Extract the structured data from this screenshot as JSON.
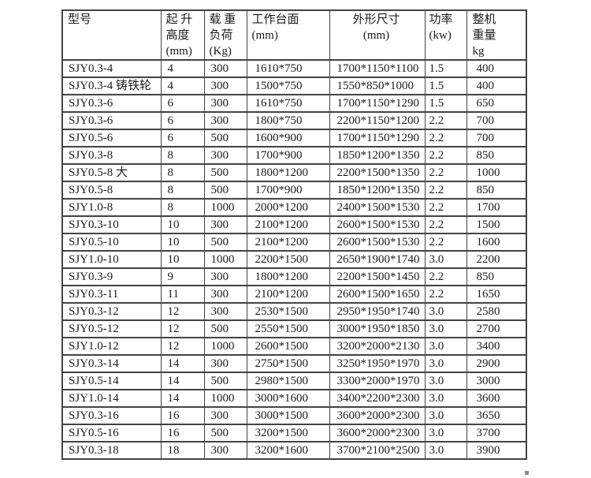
{
  "page": {
    "background_color": "#ffffff",
    "text_color": "#1c1c1c",
    "table_border_color": "#434343",
    "corner_dot_color": "#8a8a8a"
  },
  "table": {
    "header": {
      "cols": [
        {
          "id": "model",
          "lines": [
            "型号",
            "",
            ""
          ]
        },
        {
          "id": "lift-height",
          "lines": [
            "起 升",
            "高度",
            "(mm)"
          ]
        },
        {
          "id": "load",
          "lines": [
            "载 重",
            "负荷",
            "(Kg)"
          ]
        },
        {
          "id": "platform",
          "lines": [
            "工作台面",
            "(mm)",
            ""
          ]
        },
        {
          "id": "dimensions",
          "lines": [
            "外形尺寸",
            "(mm)",
            ""
          ]
        },
        {
          "id": "power",
          "lines": [
            "功率",
            "(kw)",
            ""
          ]
        },
        {
          "id": "weight",
          "lines": [
            "整机",
            "重量",
            "kg"
          ]
        }
      ]
    },
    "rows": [
      [
        "SJY0.3-4",
        "4",
        "300",
        "1610*750",
        "1700*1150*1100",
        "1.5",
        "400"
      ],
      [
        "SJY0.3-4 铸铁轮",
        "4",
        "300",
        "1500*750",
        "1550*850*1000",
        "1.5",
        "400"
      ],
      [
        "SJY0.3-6",
        "6",
        "300",
        "1610*750",
        "1700*1150*1290",
        "1.5",
        "650"
      ],
      [
        "SJY0.3-6",
        "6",
        "300",
        "1800*750",
        "2200*1150*1200",
        "2.2",
        "700"
      ],
      [
        "SJY0.5-6",
        "6",
        "500",
        "1600*900",
        "1700*1150*1290",
        "2.2",
        "700"
      ],
      [
        "SJY0.3-8",
        "8",
        "300",
        "1700*900",
        "1850*1200*1350",
        "2.2",
        "850"
      ],
      [
        "SJY0.5-8 大",
        "8",
        "500",
        "1800*1200",
        "2200*1500*1350",
        "2.2",
        "1000"
      ],
      [
        "SJY0.5-8",
        "8",
        "500",
        "1700*900",
        "1850*1200*1350",
        "2.2",
        "850"
      ],
      [
        "SJY1.0-8",
        "8",
        "1000",
        "2000*1200",
        "2400*1500*1530",
        "2.2",
        "1700"
      ],
      [
        "SJY0.3-10",
        "10",
        "300",
        "2100*1200",
        "2600*1500*1530",
        "2.2",
        "1500"
      ],
      [
        "SJY0.5-10",
        "10",
        "500",
        "2100*1200",
        "2600*1500*1530",
        "2.2",
        "1600"
      ],
      [
        "SJY1.0-10",
        "10",
        "1000",
        "2200*1500",
        "2650*1900*1740",
        "3.0",
        "2200"
      ],
      [
        "SJY0.3-9",
        "9",
        "300",
        "1800*1200",
        "2200*1500*1450",
        "2.2",
        "850"
      ],
      [
        "SJY0.3-11",
        "11",
        "300",
        "2100*1200",
        "2600*1500*1650",
        "2.2",
        "1650"
      ],
      [
        "SJY0.3-12",
        "12",
        "300",
        "2530*1500",
        "2950*1950*1740",
        "3.0",
        "2580"
      ],
      [
        "SJY0.5-12",
        "12",
        "500",
        "2550*1500",
        "3000*1950*1850",
        "3.0",
        "2700"
      ],
      [
        "SJY1.0-12",
        "12",
        "1000",
        "2600*1500",
        "3200*2000*2130",
        "3.0",
        "3400"
      ],
      [
        "SJY0.3-14",
        "14",
        "300",
        "2750*1500",
        "3250*1950*1970",
        "3.0",
        "2900"
      ],
      [
        "SJY0.5-14",
        "14",
        "500",
        "2980*1500",
        "3300*2000*1970",
        "3.0",
        "3000"
      ],
      [
        "SJY1.0-14",
        "14",
        "1000",
        "3000*1600",
        "3400*2200*2300",
        "3.0",
        "3600"
      ],
      [
        "SJY0.3-16",
        "16",
        "300",
        "3000*1500",
        "3600*2000*2300",
        "3.0",
        "3650"
      ],
      [
        "SJY0.5-16",
        "16",
        "500",
        "3200*1500",
        "3600*2000*2300",
        "3.0",
        "3700"
      ],
      [
        "SJY0.3-18",
        "18",
        "300",
        "3200*1600",
        "3700*2100*2500",
        "3.0",
        "3900"
      ]
    ]
  }
}
